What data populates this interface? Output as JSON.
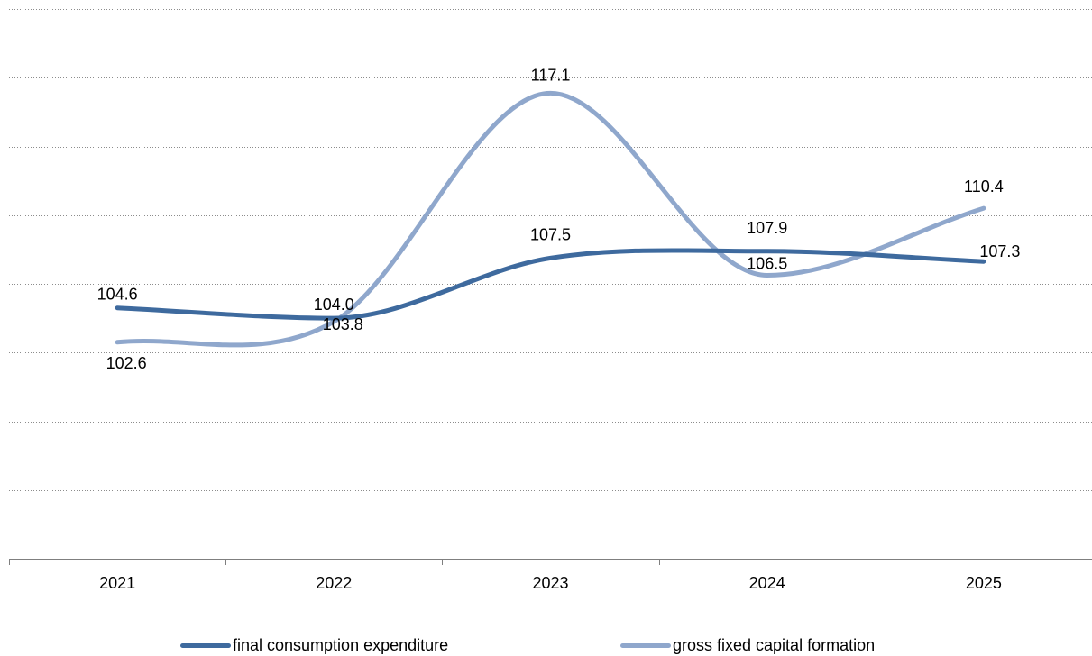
{
  "chart_data": {
    "type": "line",
    "categories": [
      "2021",
      "2022",
      "2023",
      "2024",
      "2025"
    ],
    "series": [
      {
        "name": "final consumption expenditure",
        "values": [
          104.6,
          104.0,
          107.5,
          107.9,
          107.3
        ],
        "labels": [
          "104.6",
          "104.0",
          "107.5",
          "107.9",
          "107.3"
        ],
        "color": "#3E6A9E"
      },
      {
        "name": "gross fixed capital formation",
        "values": [
          102.6,
          103.8,
          117.1,
          106.5,
          110.4
        ],
        "labels": [
          "102.6",
          "103.8",
          "117.1",
          "106.5",
          "110.4"
        ],
        "color": "#8FA7CC"
      }
    ],
    "smooth": true,
    "ylim": [
      90,
      122
    ],
    "grid": true,
    "legend_position": "bottom"
  }
}
